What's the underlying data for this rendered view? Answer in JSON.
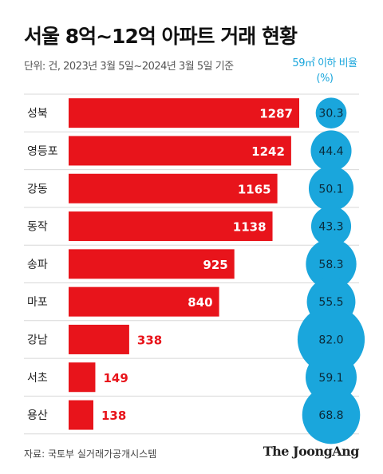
{
  "title": "서울 8억~12억 아파트 거래 현황",
  "subtitle": "단위: 건, 2023년 3월 5일~2024년 3월 5일 기준",
  "ratio_header_line1": "59㎡ 이하 비율",
  "ratio_header_line2": "(%)",
  "source": "자료: 국토부 실거래가공개시스템",
  "brand": "The JoongAng",
  "colors": {
    "bar": "#e8141b",
    "bubble": "#1aa6dc",
    "count_outside": "#e8141b"
  },
  "chart_data": {
    "type": "bar",
    "orientation": "horizontal",
    "categories": [
      "성북",
      "영등포",
      "강동",
      "동작",
      "송파",
      "마포",
      "강남",
      "서초",
      "용산"
    ],
    "series": [
      {
        "values": [
          1287,
          1242,
          1165,
          1138,
          925,
          840,
          338,
          149,
          138
        ]
      }
    ],
    "ratio_labels": [
      "30.3",
      "44.4",
      "50.1",
      "43.3",
      "58.3",
      "55.5",
      "82.0",
      "59.1",
      "68.8"
    ],
    "ratio_values": [
      30.3,
      44.4,
      50.1,
      43.3,
      58.3,
      55.5,
      82.0,
      59.1,
      68.8
    ],
    "count_labels": [
      "1287",
      "1242",
      "1165",
      "1138",
      "925",
      "840",
      "338",
      "149",
      "138"
    ],
    "xlabel": "",
    "ylabel": ""
  }
}
